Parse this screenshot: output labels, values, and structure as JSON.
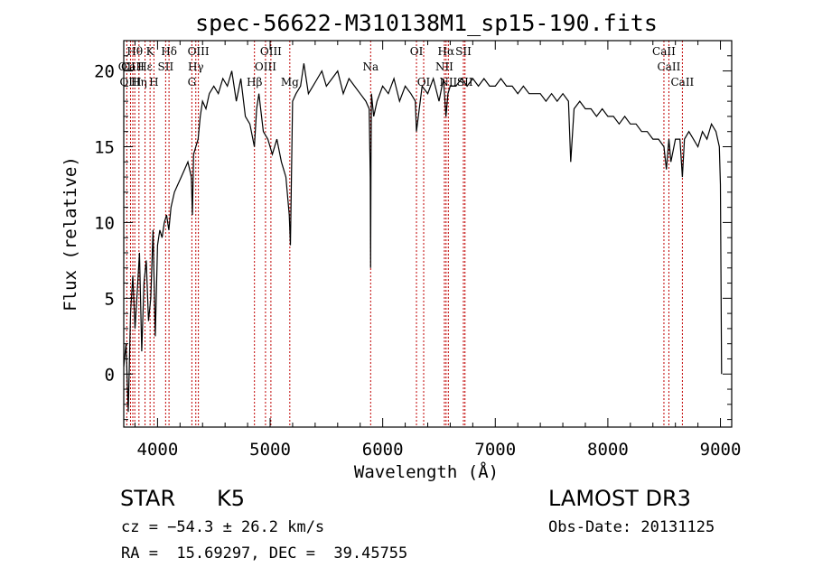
{
  "chart_data": {
    "type": "line",
    "title": "spec-56622-M310138M1_sp15-190.fits",
    "xlabel": "Wavelength (Å)",
    "ylabel": "Flux (relative)",
    "xlim": [
      3700,
      9100
    ],
    "ylim": [
      -3.5,
      22
    ],
    "xticks": [
      4000,
      5000,
      6000,
      7000,
      8000,
      9000
    ],
    "yticks": [
      0,
      5,
      10,
      15,
      20
    ],
    "series": [
      {
        "name": "flux",
        "x": [
          3700,
          3720,
          3740,
          3760,
          3780,
          3800,
          3820,
          3840,
          3860,
          3880,
          3900,
          3920,
          3940,
          3960,
          3980,
          4000,
          4020,
          4040,
          4060,
          4080,
          4100,
          4120,
          4150,
          4180,
          4210,
          4240,
          4270,
          4300,
          4310,
          4320,
          4340,
          4360,
          4380,
          4400,
          4430,
          4460,
          4500,
          4540,
          4580,
          4620,
          4660,
          4700,
          4740,
          4780,
          4820,
          4860,
          4880,
          4900,
          4940,
          4980,
          5020,
          5060,
          5100,
          5140,
          5170,
          5180,
          5200,
          5230,
          5270,
          5300,
          5340,
          5380,
          5420,
          5460,
          5500,
          5550,
          5600,
          5650,
          5700,
          5750,
          5800,
          5850,
          5880,
          5890,
          5893,
          5896,
          5900,
          5920,
          5950,
          6000,
          6050,
          6100,
          6150,
          6200,
          6250,
          6290,
          6300,
          6350,
          6400,
          6450,
          6500,
          6540,
          6562,
          6580,
          6600,
          6650,
          6700,
          6750,
          6800,
          6850,
          6900,
          6950,
          7000,
          7050,
          7100,
          7150,
          7200,
          7250,
          7300,
          7350,
          7400,
          7450,
          7500,
          7550,
          7600,
          7650,
          7670,
          7700,
          7750,
          7800,
          7850,
          7900,
          7950,
          8000,
          8050,
          8100,
          8150,
          8200,
          8250,
          8300,
          8350,
          8400,
          8450,
          8498,
          8520,
          8542,
          8560,
          8600,
          8640,
          8662,
          8680,
          8720,
          8760,
          8800,
          8840,
          8880,
          8920,
          8960,
          8990,
          9000,
          9010
        ],
        "values": [
          0.5,
          2.0,
          -2.5,
          4.0,
          6.5,
          3.0,
          5.5,
          8.0,
          1.5,
          6.0,
          7.5,
          3.5,
          5.0,
          9.5,
          2.5,
          8.5,
          9.5,
          9.0,
          10.0,
          10.5,
          9.5,
          11.0,
          12.0,
          12.5,
          13.0,
          13.5,
          14.0,
          13.0,
          10.5,
          14.5,
          15.0,
          15.5,
          17.0,
          18.0,
          17.5,
          18.5,
          19.0,
          18.5,
          19.5,
          19.0,
          20.0,
          18.0,
          19.5,
          17.0,
          16.5,
          15.0,
          17.5,
          18.5,
          16.0,
          15.5,
          14.5,
          15.5,
          14.0,
          13.0,
          10.5,
          8.5,
          18.0,
          18.5,
          19.0,
          20.5,
          18.5,
          19.0,
          19.5,
          20.0,
          19.0,
          19.5,
          20.0,
          18.5,
          19.5,
          19.0,
          18.5,
          18.0,
          17.5,
          13.0,
          7.0,
          14.0,
          18.5,
          17.0,
          18.0,
          19.0,
          18.5,
          19.5,
          18.0,
          19.0,
          18.5,
          18.0,
          16.0,
          19.0,
          18.5,
          19.5,
          18.0,
          19.5,
          17.0,
          18.5,
          19.0,
          19.0,
          19.5,
          19.0,
          19.5,
          19.0,
          19.5,
          19.0,
          19.0,
          19.5,
          19.0,
          19.0,
          18.5,
          19.0,
          18.5,
          18.5,
          18.5,
          18.0,
          18.5,
          18.0,
          18.5,
          18.0,
          14.0,
          17.5,
          18.0,
          17.5,
          17.5,
          17.0,
          17.5,
          17.0,
          17.0,
          16.5,
          17.0,
          16.5,
          16.5,
          16.0,
          16.0,
          15.5,
          15.5,
          15.0,
          13.5,
          15.5,
          14.0,
          15.5,
          15.5,
          13.0,
          15.5,
          16.0,
          15.5,
          15.0,
          16.0,
          15.5,
          16.5,
          16.0,
          15.0,
          12.5,
          0.0
        ]
      }
    ],
    "line_color": "#000000",
    "marker_color": "#c00000",
    "lines": [
      {
        "label": "Hθ",
        "wavelength": 3798,
        "row": 1
      },
      {
        "label": "OII",
        "wavelength": 3727,
        "row": 2
      },
      {
        "label": "OIII",
        "wavelength": 3760,
        "row": 3
      },
      {
        "label": "Hη",
        "wavelength": 3835,
        "row": 3
      },
      {
        "label": "CaII",
        "wavelength": 3780,
        "row": 2
      },
      {
        "label": "K",
        "wavelength": 3934,
        "row": 1
      },
      {
        "label": "Hε",
        "wavelength": 3889,
        "row": 2
      },
      {
        "label": "H",
        "wavelength": 3968,
        "row": 3
      },
      {
        "label": "SII",
        "wavelength": 4072,
        "row": 2
      },
      {
        "label": "Hδ",
        "wavelength": 4102,
        "row": 1
      },
      {
        "label": "OIII",
        "wavelength": 4363,
        "row": 1
      },
      {
        "label": "Hγ",
        "wavelength": 4340,
        "row": 2
      },
      {
        "label": "G",
        "wavelength": 4305,
        "row": 3
      },
      {
        "label": "OIII",
        "wavelength": 5007,
        "row": 1
      },
      {
        "label": "OIII",
        "wavelength": 4959,
        "row": 2
      },
      {
        "label": "Hβ",
        "wavelength": 4861,
        "row": 3
      },
      {
        "label": "Mg",
        "wavelength": 5175,
        "row": 3
      },
      {
        "label": "Na",
        "wavelength": 5893,
        "row": 2
      },
      {
        "label": "OI",
        "wavelength": 6300,
        "row": 1
      },
      {
        "label": "OI",
        "wavelength": 6364,
        "row": 3
      },
      {
        "label": "Hα",
        "wavelength": 6563,
        "row": 1
      },
      {
        "label": "NII",
        "wavelength": 6548,
        "row": 2
      },
      {
        "label": "NII",
        "wavelength": 6583,
        "row": 3
      },
      {
        "label": "SII",
        "wavelength": 6717,
        "row": 1
      },
      {
        "label": "SII",
        "wavelength": 6731,
        "row": 3
      },
      {
        "label": "CaII",
        "wavelength": 8498,
        "row": 1
      },
      {
        "label": "CaII",
        "wavelength": 8542,
        "row": 2
      },
      {
        "label": "CaII",
        "wavelength": 8662,
        "row": 3
      }
    ]
  },
  "footer": {
    "object_class": "STAR",
    "subclass": "K5",
    "survey": "LAMOST DR3",
    "cz": "cz = −54.3 ± 26.2 km/s",
    "obs_date": "Obs-Date: 20131125",
    "coords": "RA =  15.69297, DEC =  39.45755"
  }
}
